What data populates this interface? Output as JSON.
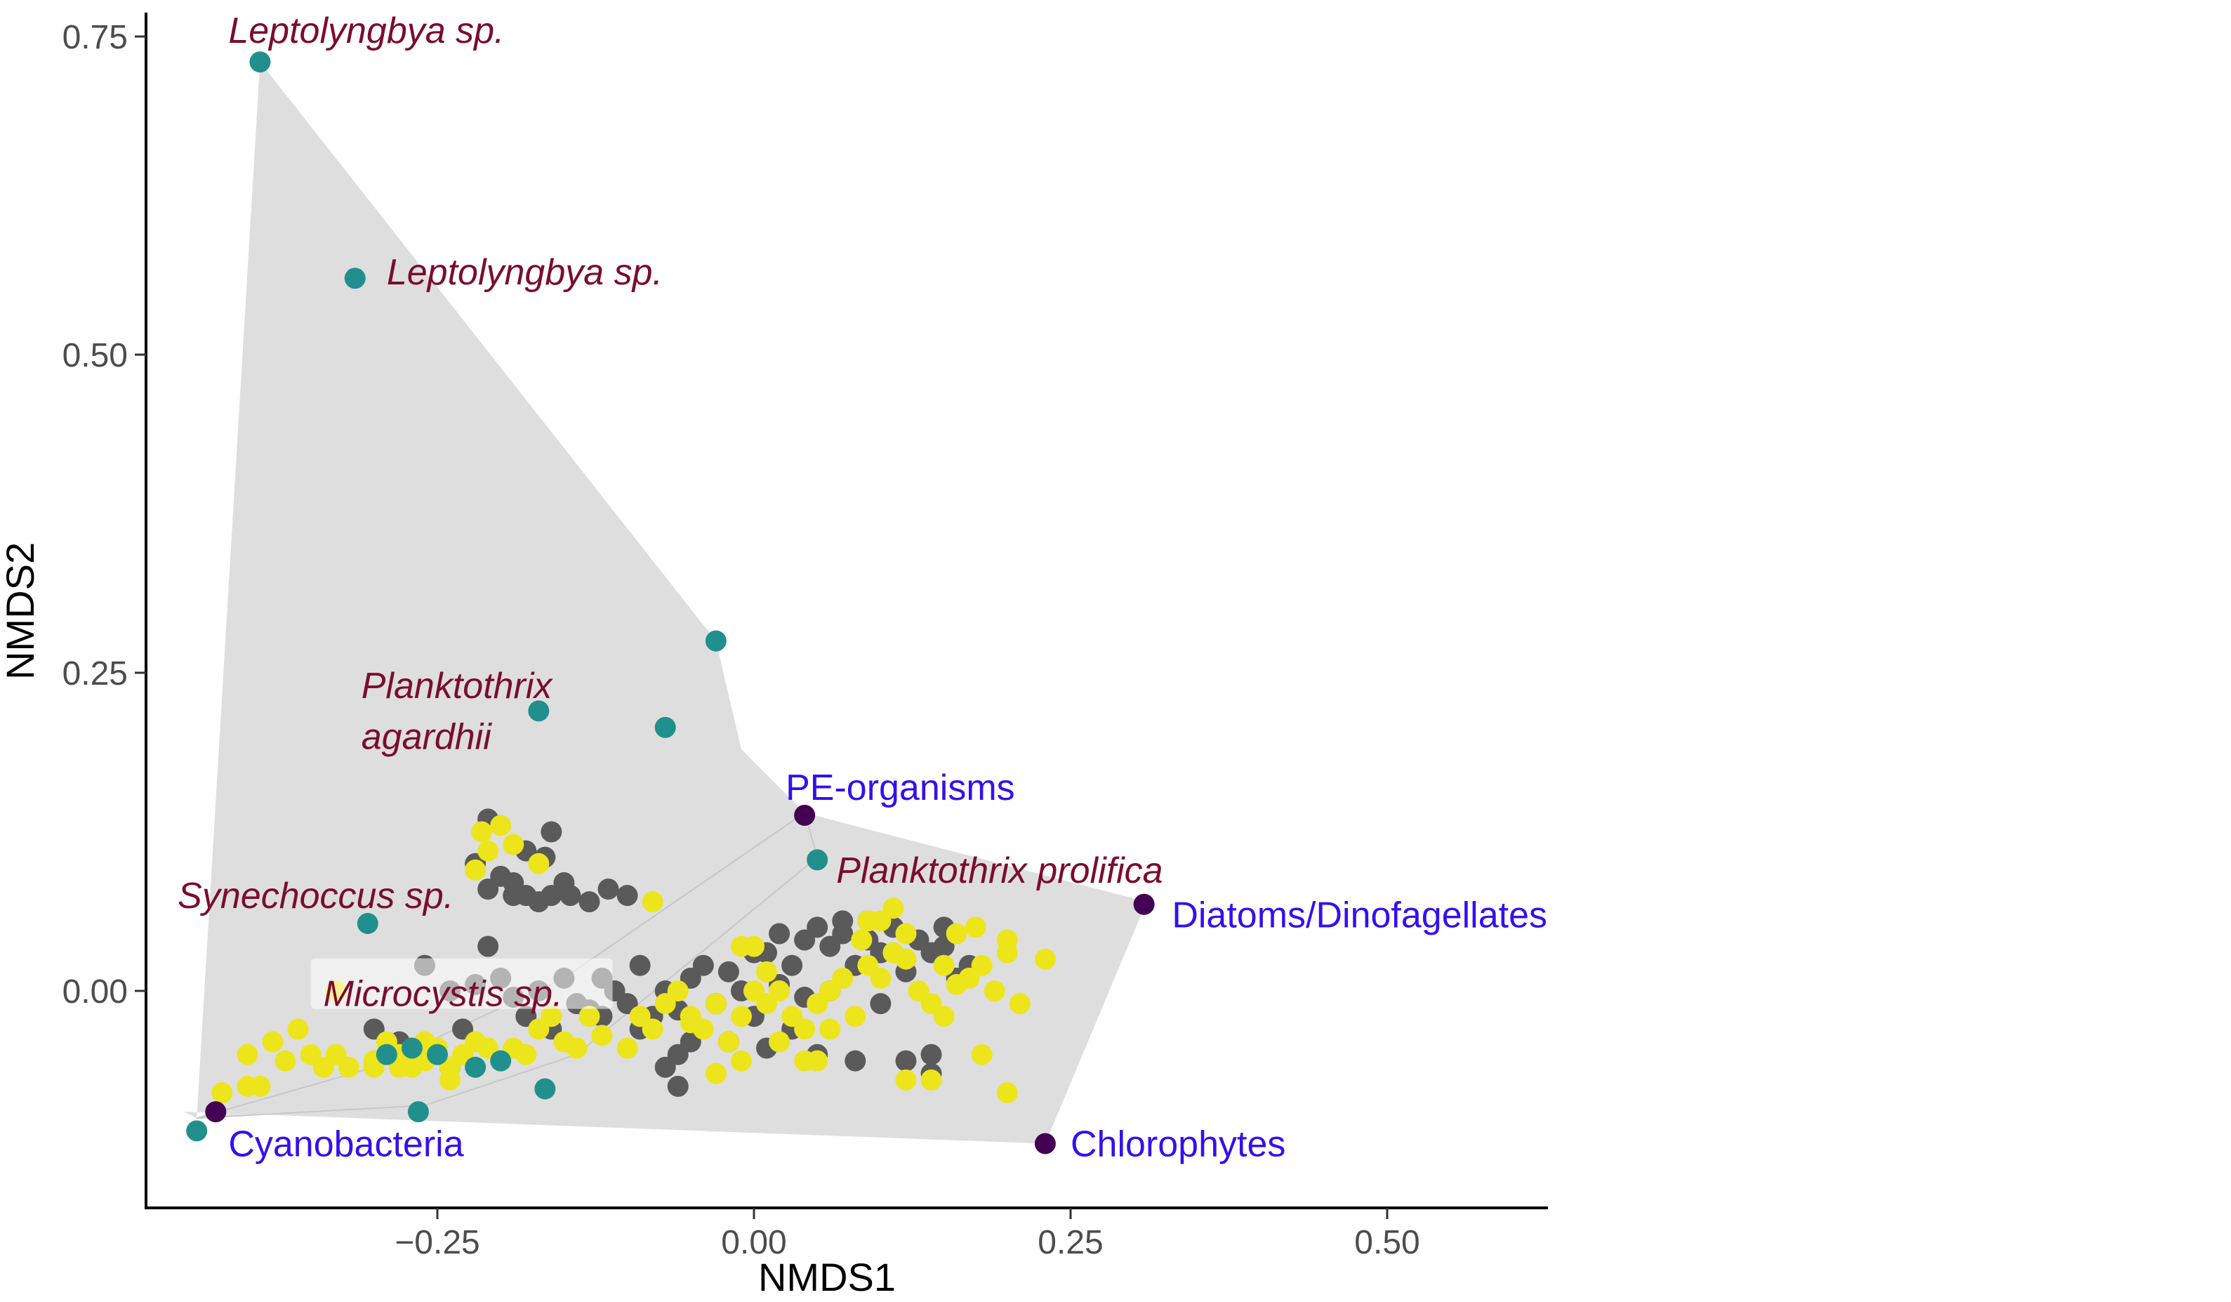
{
  "chart_data": {
    "type": "scatter",
    "title": "",
    "xlabel": "NMDS1",
    "ylabel": "NMDS2",
    "xlim": [
      -0.48,
      0.62
    ],
    "ylim": [
      -0.17,
      0.77
    ],
    "x_ticks": [
      -0.25,
      0.0,
      0.25,
      0.5
    ],
    "x_tick_labels": [
      "−0.25",
      "0.00",
      "0.25",
      "0.50"
    ],
    "y_ticks": [
      0.0,
      0.25,
      0.5,
      0.75
    ],
    "y_tick_labels": [
      "0.00",
      "0.25",
      "0.50",
      "0.75"
    ],
    "grid": false,
    "legend": "none",
    "colors": {
      "hull": "#dedede",
      "reference": "#440154",
      "cyanobacteria": "#21908c",
      "sample_gray": "#5a5a5a",
      "sample_yellow": "#ede51c",
      "species_label": "#7a0d2e",
      "group_label": "#3311ee"
    },
    "hulls": [
      [
        [
          -0.39,
          0.73
        ],
        [
          -0.03,
          0.275
        ],
        [
          -0.01,
          0.19
        ],
        [
          0.04,
          0.14
        ],
        [
          0.31,
          0.07
        ],
        [
          0.23,
          -0.12
        ],
        [
          -0.45,
          -0.095
        ],
        [
          -0.44,
          -0.1
        ]
      ],
      [
        [
          -0.44,
          -0.1
        ],
        [
          -0.26,
          -0.09
        ],
        [
          -0.14,
          -0.05
        ],
        [
          0.05,
          0.105
        ],
        [
          0.04,
          0.14
        ],
        [
          -0.15,
          0.01
        ],
        [
          -0.3,
          -0.06
        ]
      ]
    ],
    "series": [
      {
        "color": "#5a5a5a",
        "points": [
          [
            -0.21,
            0.135
          ],
          [
            -0.18,
            0.11
          ],
          [
            -0.16,
            0.125
          ],
          [
            -0.22,
            0.1
          ],
          [
            -0.2,
            0.09
          ],
          [
            -0.19,
            0.085
          ],
          [
            -0.165,
            0.105
          ],
          [
            -0.21,
            0.08
          ],
          [
            -0.19,
            0.075
          ],
          [
            -0.18,
            0.075
          ],
          [
            -0.17,
            0.07
          ],
          [
            -0.16,
            0.075
          ],
          [
            -0.15,
            0.085
          ],
          [
            -0.145,
            0.075
          ],
          [
            -0.13,
            0.07
          ],
          [
            -0.115,
            0.08
          ],
          [
            -0.1,
            0.075
          ],
          [
            -0.21,
            0.035
          ],
          [
            -0.26,
            0.02
          ],
          [
            -0.24,
            0.0
          ],
          [
            -0.22,
            0.005
          ],
          [
            -0.2,
            0.01
          ],
          [
            -0.19,
            -0.005
          ],
          [
            -0.17,
            0.0
          ],
          [
            -0.15,
            0.01
          ],
          [
            -0.14,
            -0.01
          ],
          [
            -0.13,
            -0.015
          ],
          [
            -0.12,
            -0.02
          ],
          [
            -0.11,
            0.0
          ],
          [
            -0.1,
            -0.01
          ],
          [
            -0.09,
            0.02
          ],
          [
            -0.08,
            -0.02
          ],
          [
            -0.07,
            0.0
          ],
          [
            -0.06,
            -0.015
          ],
          [
            -0.05,
            0.01
          ],
          [
            -0.04,
            0.02
          ],
          [
            -0.03,
            -0.01
          ],
          [
            -0.02,
            0.015
          ],
          [
            -0.01,
            0.0
          ],
          [
            0.0,
            -0.02
          ],
          [
            0.01,
            0.03
          ],
          [
            0.02,
            0.005
          ],
          [
            0.03,
            0.02
          ],
          [
            0.04,
            0.04
          ],
          [
            0.05,
            0.05
          ],
          [
            0.06,
            0.035
          ],
          [
            0.07,
            0.045
          ],
          [
            0.08,
            0.02
          ],
          [
            0.09,
            0.04
          ],
          [
            0.1,
            0.03
          ],
          [
            0.11,
            0.05
          ],
          [
            0.13,
            0.04
          ],
          [
            0.14,
            0.03
          ],
          [
            0.15,
            0.035
          ],
          [
            0.16,
            0.01
          ],
          [
            0.17,
            0.02
          ],
          [
            -0.07,
            -0.06
          ],
          [
            -0.06,
            -0.05
          ],
          [
            -0.05,
            -0.04
          ],
          [
            0.05,
            -0.05
          ],
          [
            0.08,
            -0.055
          ],
          [
            0.12,
            -0.055
          ],
          [
            0.14,
            -0.05
          ],
          [
            0.14,
            -0.065
          ],
          [
            -0.26,
            -0.05
          ],
          [
            -0.24,
            -0.06
          ],
          [
            -0.28,
            -0.04
          ],
          [
            -0.3,
            -0.03
          ],
          [
            -0.06,
            -0.075
          ],
          [
            -0.02,
            -0.04
          ],
          [
            0.06,
            0.0
          ],
          [
            0.1,
            -0.01
          ],
          [
            0.03,
            -0.03
          ],
          [
            0.15,
            0.05
          ],
          [
            0.09,
            0.055
          ],
          [
            0.07,
            0.055
          ],
          [
            -0.16,
            -0.03
          ],
          [
            -0.18,
            -0.02
          ],
          [
            0.0,
            0.03
          ],
          [
            0.02,
            0.045
          ],
          [
            -0.23,
            -0.03
          ],
          [
            -0.12,
            0.01
          ],
          [
            0.04,
            -0.005
          ],
          [
            0.12,
            0.015
          ],
          [
            0.01,
            -0.045
          ],
          [
            -0.09,
            -0.03
          ]
        ]
      },
      {
        "color": "#ede51c",
        "points": [
          [
            -0.215,
            0.125
          ],
          [
            -0.2,
            0.13
          ],
          [
            -0.21,
            0.11
          ],
          [
            -0.19,
            0.115
          ],
          [
            -0.22,
            0.095
          ],
          [
            -0.17,
            0.1
          ],
          [
            -0.08,
            0.07
          ],
          [
            -0.33,
            0.0
          ],
          [
            -0.36,
            -0.03
          ],
          [
            -0.38,
            -0.04
          ],
          [
            -0.4,
            -0.05
          ],
          [
            -0.42,
            -0.08
          ],
          [
            -0.4,
            -0.075
          ],
          [
            -0.37,
            -0.055
          ],
          [
            -0.35,
            -0.05
          ],
          [
            -0.34,
            -0.06
          ],
          [
            -0.33,
            -0.05
          ],
          [
            -0.32,
            -0.06
          ],
          [
            -0.3,
            -0.055
          ],
          [
            -0.29,
            -0.04
          ],
          [
            -0.28,
            -0.05
          ],
          [
            -0.27,
            -0.06
          ],
          [
            -0.26,
            -0.055
          ],
          [
            -0.25,
            -0.045
          ],
          [
            -0.24,
            -0.06
          ],
          [
            -0.23,
            -0.05
          ],
          [
            -0.22,
            -0.04
          ],
          [
            -0.21,
            -0.045
          ],
          [
            -0.2,
            -0.055
          ],
          [
            -0.19,
            -0.045
          ],
          [
            -0.18,
            -0.05
          ],
          [
            -0.17,
            -0.03
          ],
          [
            -0.16,
            -0.02
          ],
          [
            -0.15,
            -0.04
          ],
          [
            -0.14,
            -0.045
          ],
          [
            -0.13,
            -0.02
          ],
          [
            -0.12,
            -0.035
          ],
          [
            -0.1,
            -0.045
          ],
          [
            -0.09,
            -0.02
          ],
          [
            -0.07,
            -0.01
          ],
          [
            -0.05,
            -0.02
          ],
          [
            -0.04,
            -0.03
          ],
          [
            -0.03,
            -0.01
          ],
          [
            -0.02,
            -0.04
          ],
          [
            -0.01,
            -0.02
          ],
          [
            0.0,
            0.0
          ],
          [
            0.01,
            -0.01
          ],
          [
            0.02,
            -0.04
          ],
          [
            0.03,
            -0.02
          ],
          [
            0.04,
            -0.03
          ],
          [
            0.05,
            -0.01
          ],
          [
            0.06,
            0.0
          ],
          [
            0.07,
            0.01
          ],
          [
            0.08,
            -0.02
          ],
          [
            0.09,
            0.02
          ],
          [
            0.1,
            0.01
          ],
          [
            0.11,
            0.03
          ],
          [
            0.12,
            0.025
          ],
          [
            0.13,
            0.0
          ],
          [
            0.14,
            -0.01
          ],
          [
            0.15,
            0.02
          ],
          [
            0.16,
            0.005
          ],
          [
            0.17,
            0.01
          ],
          [
            0.18,
            0.02
          ],
          [
            0.19,
            0.0
          ],
          [
            0.2,
            0.03
          ],
          [
            0.21,
            -0.01
          ],
          [
            0.23,
            0.025
          ],
          [
            0.2,
            0.04
          ],
          [
            0.175,
            0.05
          ],
          [
            0.16,
            0.045
          ],
          [
            0.12,
            0.045
          ],
          [
            0.09,
            0.055
          ],
          [
            0.085,
            0.04
          ],
          [
            0.1,
            0.055
          ],
          [
            0.11,
            0.065
          ],
          [
            0.0,
            0.035
          ],
          [
            -0.01,
            0.035
          ],
          [
            -0.03,
            -0.065
          ],
          [
            -0.05,
            -0.025
          ],
          [
            0.01,
            0.015
          ],
          [
            -0.01,
            -0.055
          ],
          [
            0.04,
            -0.055
          ],
          [
            0.05,
            -0.055
          ],
          [
            0.12,
            -0.07
          ],
          [
            0.14,
            -0.07
          ],
          [
            0.18,
            -0.05
          ],
          [
            0.2,
            -0.08
          ],
          [
            0.15,
            -0.02
          ],
          [
            0.06,
            -0.03
          ],
          [
            -0.39,
            -0.075
          ],
          [
            -0.28,
            -0.06
          ],
          [
            -0.26,
            -0.04
          ],
          [
            -0.24,
            -0.07
          ],
          [
            -0.3,
            -0.06
          ],
          [
            -0.06,
            0.0
          ],
          [
            0.02,
            0.0
          ],
          [
            -0.08,
            -0.03
          ]
        ]
      },
      {
        "color": "#21908c",
        "points": [
          [
            -0.39,
            0.73
          ],
          [
            -0.315,
            0.56
          ],
          [
            -0.03,
            0.275
          ],
          [
            -0.17,
            0.22
          ],
          [
            -0.07,
            0.207
          ],
          [
            0.05,
            0.103
          ],
          [
            -0.305,
            0.053
          ],
          [
            -0.44,
            -0.11
          ],
          [
            -0.265,
            -0.095
          ],
          [
            -0.165,
            -0.077
          ],
          [
            -0.27,
            -0.045
          ],
          [
            -0.25,
            -0.05
          ],
          [
            -0.2,
            -0.055
          ],
          [
            -0.22,
            -0.06
          ],
          [
            -0.29,
            -0.05
          ]
        ]
      },
      {
        "color": "#440154",
        "points": [
          [
            0.04,
            0.138
          ],
          [
            0.308,
            0.068
          ],
          [
            0.23,
            -0.12
          ],
          [
            -0.425,
            -0.095
          ]
        ]
      }
    ],
    "annotations": [
      {
        "text": "Leptolyngbya sp.",
        "x": -0.415,
        "y": 0.755,
        "style": "species",
        "boxed": false
      },
      {
        "text": "Leptolyngbya sp.",
        "x": -0.29,
        "y": 0.565,
        "style": "species",
        "boxed": false
      },
      {
        "text": "Planktothrix",
        "x": -0.31,
        "y": 0.24,
        "style": "species",
        "boxed": false
      },
      {
        "text": "agardhii",
        "x": -0.31,
        "y": 0.2,
        "style": "species",
        "boxed": false
      },
      {
        "text": "PE-organisms",
        "x": 0.025,
        "y": 0.16,
        "style": "group",
        "boxed": false
      },
      {
        "text": "Planktothrix prolifica",
        "x": 0.065,
        "y": 0.095,
        "style": "species",
        "boxed": false
      },
      {
        "text": "Synechoccus sp.",
        "x": -0.455,
        "y": 0.075,
        "style": "species",
        "boxed": false
      },
      {
        "text": "Diatoms/Dinofagellates",
        "x": 0.33,
        "y": 0.06,
        "style": "group",
        "boxed": false
      },
      {
        "text": "Microcystis sp.",
        "x": -0.34,
        "y": -0.002,
        "style": "species",
        "boxed": true
      },
      {
        "text": "Cyanobacteria",
        "x": -0.415,
        "y": -0.12,
        "style": "group",
        "boxed": false
      },
      {
        "text": "Chlorophytes",
        "x": 0.25,
        "y": -0.12,
        "style": "group",
        "boxed": false
      }
    ]
  }
}
